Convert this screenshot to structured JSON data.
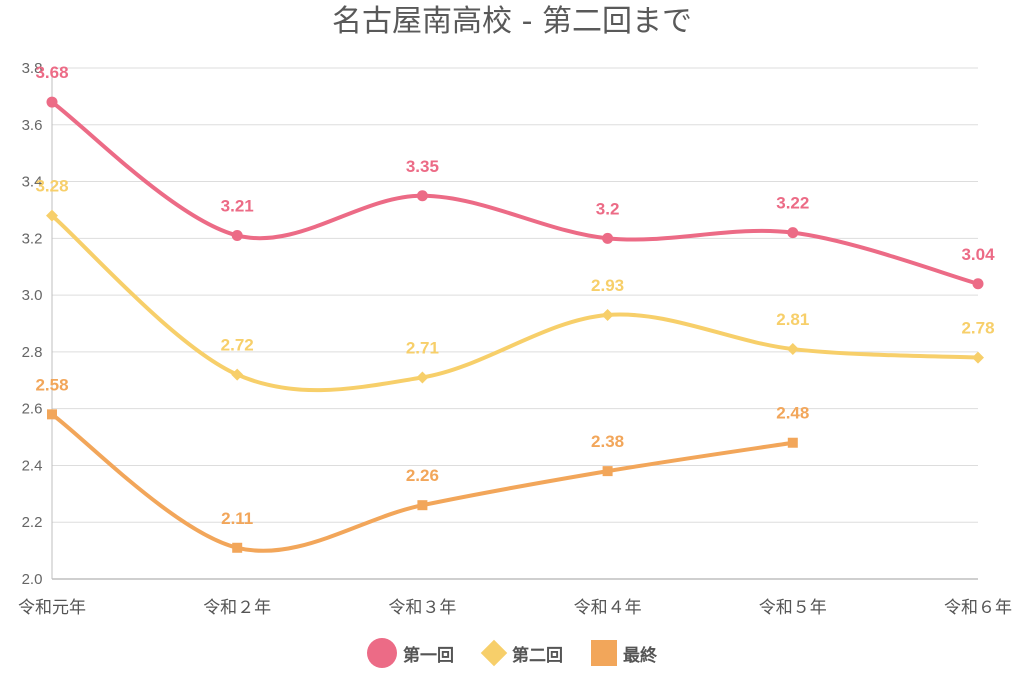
{
  "chart_data": {
    "type": "line",
    "title": "名古屋南高校 - 第二回まで",
    "categories": [
      "令和元年",
      "令和２年",
      "令和３年",
      "令和４年",
      "令和５年",
      "令和６年"
    ],
    "ylim": [
      2.0,
      3.8
    ],
    "yticks": [
      "2.0",
      "2.2",
      "2.4",
      "2.6",
      "2.8",
      "3.0",
      "3.2",
      "3.4",
      "3.6",
      "3.8"
    ],
    "grid": true,
    "legend_position": "bottom",
    "series": [
      {
        "name": "第一回",
        "color": "#ec6b86",
        "marker": "circle",
        "values": [
          3.68,
          3.21,
          3.35,
          3.2,
          3.22,
          3.04
        ],
        "labels": [
          "3.68",
          "3.21",
          "3.35",
          "3.2",
          "3.22",
          "3.04"
        ]
      },
      {
        "name": "第二回",
        "color": "#f7cf6a",
        "marker": "diamond",
        "values": [
          3.28,
          2.72,
          2.71,
          2.93,
          2.81,
          2.78
        ],
        "labels": [
          "3.28",
          "2.72",
          "2.71",
          "2.93",
          "2.81",
          "2.78"
        ]
      },
      {
        "name": "最終",
        "color": "#f2a65a",
        "marker": "square",
        "values": [
          2.58,
          2.11,
          2.26,
          2.38,
          2.48,
          null
        ],
        "labels": [
          "2.58",
          "2.11",
          "2.26",
          "2.38",
          "2.48",
          null
        ]
      }
    ]
  }
}
